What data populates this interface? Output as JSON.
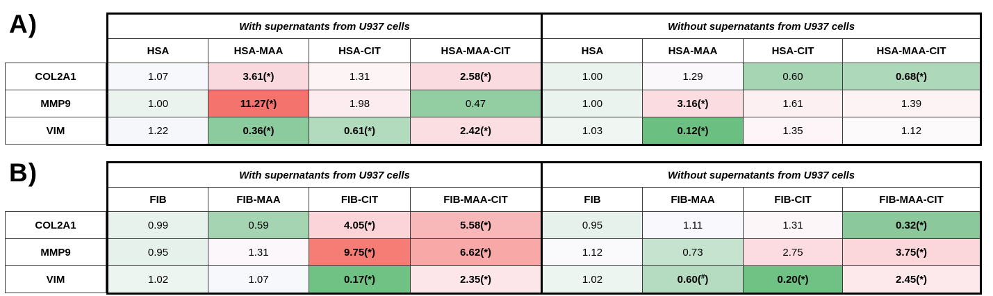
{
  "figure": {
    "description": "Gene expression fold-change heatmap tables for COL2A1, MMP9 and VIM with and without supernatants from U937 cells",
    "legend_colors": {
      "strong_up_red": "#f4746d",
      "mild_up_pink": "#fad9de",
      "neutral_white": "#fbfafd",
      "mild_down_green": "#b2dbbd",
      "strong_down_green": "#6abf81"
    }
  },
  "panels": [
    {
      "label": "A)",
      "groups": [
        {
          "title": "With supernatants from U937 cells",
          "columns": [
            "HSA",
            "HSA-MAA",
            "HSA-CIT",
            "HSA-MAA-CIT"
          ]
        },
        {
          "title": "Without supernatants from U937 cells",
          "columns": [
            "HSA",
            "HSA-MAA",
            "HSA-CIT",
            "HSA-MAA-CIT"
          ]
        }
      ],
      "rows": [
        {
          "gene": "COL2A1",
          "cells": [
            {
              "v": "1.07",
              "m": null,
              "bg": "#f7f8fc"
            },
            {
              "v": "3.61",
              "m": "*",
              "bg": "#fad9de"
            },
            {
              "v": "1.31",
              "m": null,
              "bg": "#fdf4f6"
            },
            {
              "v": "2.58",
              "m": "*",
              "bg": "#fadbe0"
            },
            {
              "v": "1.00",
              "m": null,
              "bg": "#eaf3ee"
            },
            {
              "v": "1.29",
              "m": null,
              "bg": "#fbf8fb"
            },
            {
              "v": "0.60",
              "m": null,
              "bg": "#a6d5b3"
            },
            {
              "v": "0.68",
              "m": "*",
              "bg": "#aed8ba"
            }
          ]
        },
        {
          "gene": "MMP9",
          "cells": [
            {
              "v": "1.00",
              "m": null,
              "bg": "#eaf3ee"
            },
            {
              "v": "11.27",
              "m": "*",
              "bg": "#f4746d"
            },
            {
              "v": "1.98",
              "m": null,
              "bg": "#fcecef"
            },
            {
              "v": "0.47",
              "m": null,
              "bg": "#93cda2"
            },
            {
              "v": "1.00",
              "m": null,
              "bg": "#eaf3ee"
            },
            {
              "v": "3.16",
              "m": "*",
              "bg": "#fbdce0"
            },
            {
              "v": "1.61",
              "m": null,
              "bg": "#fdf0f2"
            },
            {
              "v": "1.39",
              "m": null,
              "bg": "#fdf3f5"
            }
          ]
        },
        {
          "gene": "VIM",
          "cells": [
            {
              "v": "1.22",
              "m": null,
              "bg": "#f6f7fb"
            },
            {
              "v": "0.36",
              "m": "*",
              "bg": "#8ccb9d"
            },
            {
              "v": "0.61",
              "m": "*",
              "bg": "#b2dbbd"
            },
            {
              "v": "2.42",
              "m": "*",
              "bg": "#fadee2"
            },
            {
              "v": "1.03",
              "m": null,
              "bg": "#f0f6f2"
            },
            {
              "v": "0.12",
              "m": "*",
              "bg": "#6abf81"
            },
            {
              "v": "1.35",
              "m": null,
              "bg": "#fdf5f7"
            },
            {
              "v": "1.12",
              "m": null,
              "bg": "#fdfafb"
            }
          ]
        }
      ]
    },
    {
      "label": "B)",
      "groups": [
        {
          "title": "With supernatants from U937 cells",
          "columns": [
            "FIB",
            "FIB-MAA",
            "FIB-CIT",
            "FIB-MAA-CIT"
          ]
        },
        {
          "title": "Without supernatants from U937 cells",
          "columns": [
            "FIB",
            "FIB-MAA",
            "FIB-CIT",
            "FIB-MAA-CIT"
          ]
        }
      ],
      "rows": [
        {
          "gene": "COL2A1",
          "cells": [
            {
              "v": "0.99",
              "m": null,
              "bg": "#e8f2ec"
            },
            {
              "v": "0.59",
              "m": null,
              "bg": "#a4d4b1"
            },
            {
              "v": "4.05",
              "m": "*",
              "bg": "#fbd4da"
            },
            {
              "v": "5.58",
              "m": "*",
              "bg": "#f8b7b9"
            },
            {
              "v": "0.95",
              "m": null,
              "bg": "#e5f1ea"
            },
            {
              "v": "1.11",
              "m": null,
              "bg": "#f9f8fc"
            },
            {
              "v": "1.31",
              "m": null,
              "bg": "#fdf6f8"
            },
            {
              "v": "0.32",
              "m": "*",
              "bg": "#8bc89c"
            }
          ]
        },
        {
          "gene": "MMP9",
          "cells": [
            {
              "v": "0.95",
              "m": null,
              "bg": "#e5f1ea"
            },
            {
              "v": "1.31",
              "m": null,
              "bg": "#fbf7fa"
            },
            {
              "v": "9.75",
              "m": "*",
              "bg": "#f57d76"
            },
            {
              "v": "6.62",
              "m": "*",
              "bg": "#f7a8a7"
            },
            {
              "v": "1.12",
              "m": null,
              "bg": "#fafafd"
            },
            {
              "v": "0.73",
              "m": null,
              "bg": "#c5e3ce"
            },
            {
              "v": "2.75",
              "m": null,
              "bg": "#fcdce1"
            },
            {
              "v": "3.75",
              "m": "*",
              "bg": "#fbd6db"
            }
          ]
        },
        {
          "gene": "VIM",
          "cells": [
            {
              "v": "1.02",
              "m": null,
              "bg": "#edf5f0"
            },
            {
              "v": "1.07",
              "m": null,
              "bg": "#f7f8fc"
            },
            {
              "v": "0.17",
              "m": "*",
              "bg": "#6fc284"
            },
            {
              "v": "2.35",
              "m": "*",
              "bg": "#fce6e9"
            },
            {
              "v": "1.02",
              "m": null,
              "bg": "#edf5f0"
            },
            {
              "v": "0.60",
              "m": "#",
              "bg": "#b5dcc0"
            },
            {
              "v": "0.20",
              "m": "*",
              "bg": "#6fc284"
            },
            {
              "v": "2.45",
              "m": "*",
              "bg": "#fde8eb"
            }
          ]
        }
      ]
    }
  ],
  "chart_data": [
    {
      "type": "heatmap",
      "panel": "A",
      "title": "Fold change of gene expression on HSA coatings",
      "row_labels": [
        "COL2A1",
        "MMP9",
        "VIM"
      ],
      "col_groups": [
        "With supernatants from U937 cells",
        "Without supernatants from U937 cells"
      ],
      "columns": [
        "HSA",
        "HSA-MAA",
        "HSA-CIT",
        "HSA-MAA-CIT",
        "HSA",
        "HSA-MAA",
        "HSA-CIT",
        "HSA-MAA-CIT"
      ],
      "values": [
        [
          1.07,
          3.61,
          1.31,
          2.58,
          1.0,
          1.29,
          0.6,
          0.68
        ],
        [
          1.0,
          11.27,
          1.98,
          0.47,
          1.0,
          3.16,
          1.61,
          1.39
        ],
        [
          1.22,
          0.36,
          0.61,
          2.42,
          1.03,
          0.12,
          1.35,
          1.12
        ]
      ],
      "significance": [
        [
          "",
          "*",
          "",
          "*",
          "",
          "",
          "",
          "*"
        ],
        [
          "",
          "*",
          "",
          "",
          "",
          "*",
          "",
          ""
        ],
        [
          "",
          "*",
          "*",
          "*",
          "",
          "*",
          "",
          ""
        ]
      ],
      "colorscale": "green for values < 1, white near 1, red for values > 1"
    },
    {
      "type": "heatmap",
      "panel": "B",
      "title": "Fold change of gene expression on FIB coatings",
      "row_labels": [
        "COL2A1",
        "MMP9",
        "VIM"
      ],
      "col_groups": [
        "With supernatants from U937 cells",
        "Without supernatants from U937 cells"
      ],
      "columns": [
        "FIB",
        "FIB-MAA",
        "FIB-CIT",
        "FIB-MAA-CIT",
        "FIB",
        "FIB-MAA",
        "FIB-CIT",
        "FIB-MAA-CIT"
      ],
      "values": [
        [
          0.99,
          0.59,
          4.05,
          5.58,
          0.95,
          1.11,
          1.31,
          0.32
        ],
        [
          0.95,
          1.31,
          9.75,
          6.62,
          1.12,
          0.73,
          2.75,
          3.75
        ],
        [
          1.02,
          1.07,
          0.17,
          2.35,
          1.02,
          0.6,
          0.2,
          2.45
        ]
      ],
      "significance": [
        [
          "",
          "",
          "*",
          "*",
          "",
          "",
          "",
          "*"
        ],
        [
          "",
          "",
          "*",
          "*",
          "",
          "",
          "",
          "*"
        ],
        [
          "",
          "",
          "*",
          "*",
          "",
          "#",
          "*",
          "*"
        ]
      ],
      "colorscale": "green for values < 1, white near 1, red for values > 1"
    }
  ]
}
